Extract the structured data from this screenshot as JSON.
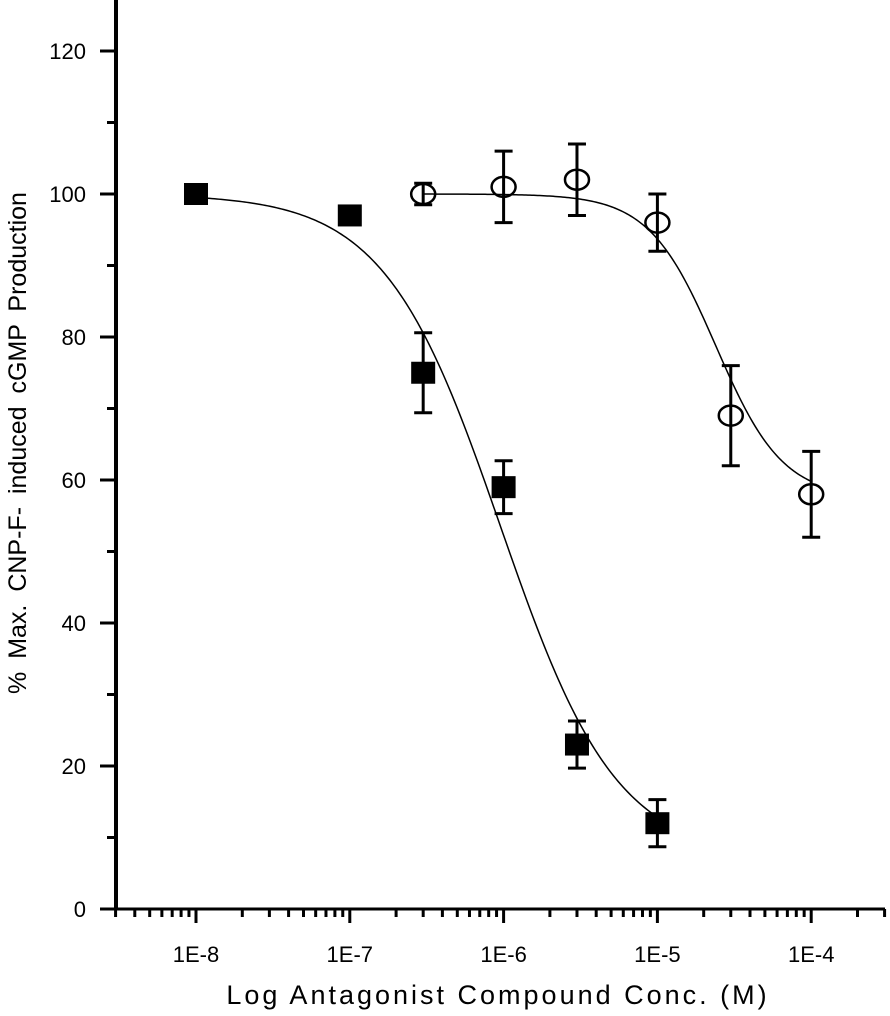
{
  "chart_data": {
    "type": "scatter",
    "title": "",
    "xlabel": "Log Antagonist Compound Conc. (M)",
    "ylabel": "% Max. CNP-F- induced cGMP Production",
    "xscale": "log",
    "xlim": [
      3e-09,
      0.0003
    ],
    "ylim": [
      0,
      125
    ],
    "x_ticks": [
      1e-08,
      1e-07,
      1e-06,
      1e-05,
      0.0001
    ],
    "x_tick_labels": [
      "1E-8",
      "1E-7",
      "1E-6",
      "1E-5",
      "1E-4"
    ],
    "y_ticks": [
      0,
      20,
      40,
      60,
      80,
      100,
      120
    ],
    "y_tick_labels": [
      "0",
      "20",
      "40",
      "60",
      "80",
      "100",
      "120"
    ],
    "y_minor_ticks": [
      10,
      30,
      50,
      70,
      90,
      110
    ],
    "grid": false,
    "legend": "none",
    "series": [
      {
        "name": "filled-squares",
        "marker": "square-filled",
        "color": "#000000",
        "x": [
          1e-08,
          1e-07,
          3e-07,
          1e-06,
          3e-06,
          1e-05
        ],
        "y": [
          100,
          97,
          75,
          59,
          23,
          12
        ],
        "yerr": [
          0,
          0.5,
          5.6,
          3.7,
          3.3,
          3.3
        ],
        "fit": {
          "model": "4PL",
          "top": 100,
          "bottom": 7,
          "logIC50": -6.02,
          "hill": 1.15
        }
      },
      {
        "name": "open-circles",
        "marker": "circle-open",
        "color": "#000000",
        "x": [
          3e-07,
          1e-06,
          3e-06,
          1e-05,
          3e-05,
          0.0001
        ],
        "y": [
          100,
          101,
          102,
          96,
          69,
          58
        ],
        "yerr": [
          1.5,
          5,
          5,
          4,
          7,
          6
        ],
        "fit": {
          "model": "4PL",
          "top": 100,
          "bottom": 57.5,
          "logIC50": -4.62,
          "hill": 2.0
        }
      }
    ]
  }
}
